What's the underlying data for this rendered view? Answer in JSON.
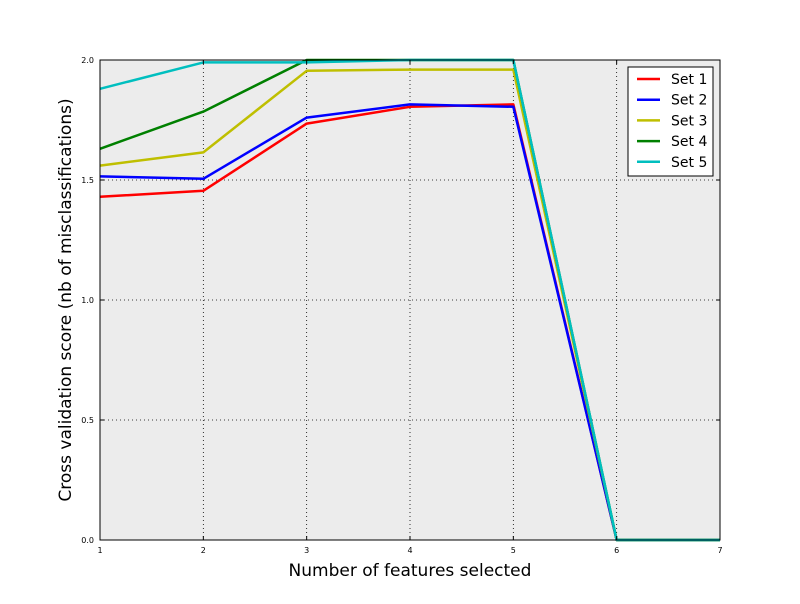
{
  "chart_data": {
    "type": "line",
    "title": "",
    "xlabel": "Number of features selected",
    "ylabel": "Cross validation score (nb of misclassifications)",
    "x": [
      1,
      2,
      3,
      4,
      5,
      6,
      7
    ],
    "xlim": [
      1,
      7
    ],
    "ylim": [
      0.0,
      2.0
    ],
    "x_ticks": [
      "1",
      "2",
      "3",
      "4",
      "5",
      "6",
      "7"
    ],
    "y_ticks": [
      "0.0",
      "0.5",
      "1.0",
      "1.5",
      "2.0"
    ],
    "grid": true,
    "legend_position": "top-right",
    "background_color": "#ececec",
    "series": [
      {
        "name": "Set 1",
        "color": "#ff0000",
        "values": [
          1.43,
          1.455,
          1.735,
          1.805,
          1.815,
          0.0,
          0.0
        ]
      },
      {
        "name": "Set 2",
        "color": "#0000ff",
        "values": [
          1.515,
          1.505,
          1.76,
          1.815,
          1.805,
          0.0,
          0.0
        ]
      },
      {
        "name": "Set 3",
        "color": "#bfbf00",
        "values": [
          1.56,
          1.615,
          1.955,
          1.96,
          1.96,
          0.0,
          0.0
        ]
      },
      {
        "name": "Set 4",
        "color": "#008000",
        "values": [
          1.63,
          1.785,
          2.0,
          2.0,
          2.0,
          0.0,
          0.0
        ]
      },
      {
        "name": "Set 5",
        "color": "#00bfbf",
        "values": [
          1.88,
          1.99,
          1.99,
          2.0,
          2.0,
          0.0,
          0.0
        ]
      }
    ]
  }
}
